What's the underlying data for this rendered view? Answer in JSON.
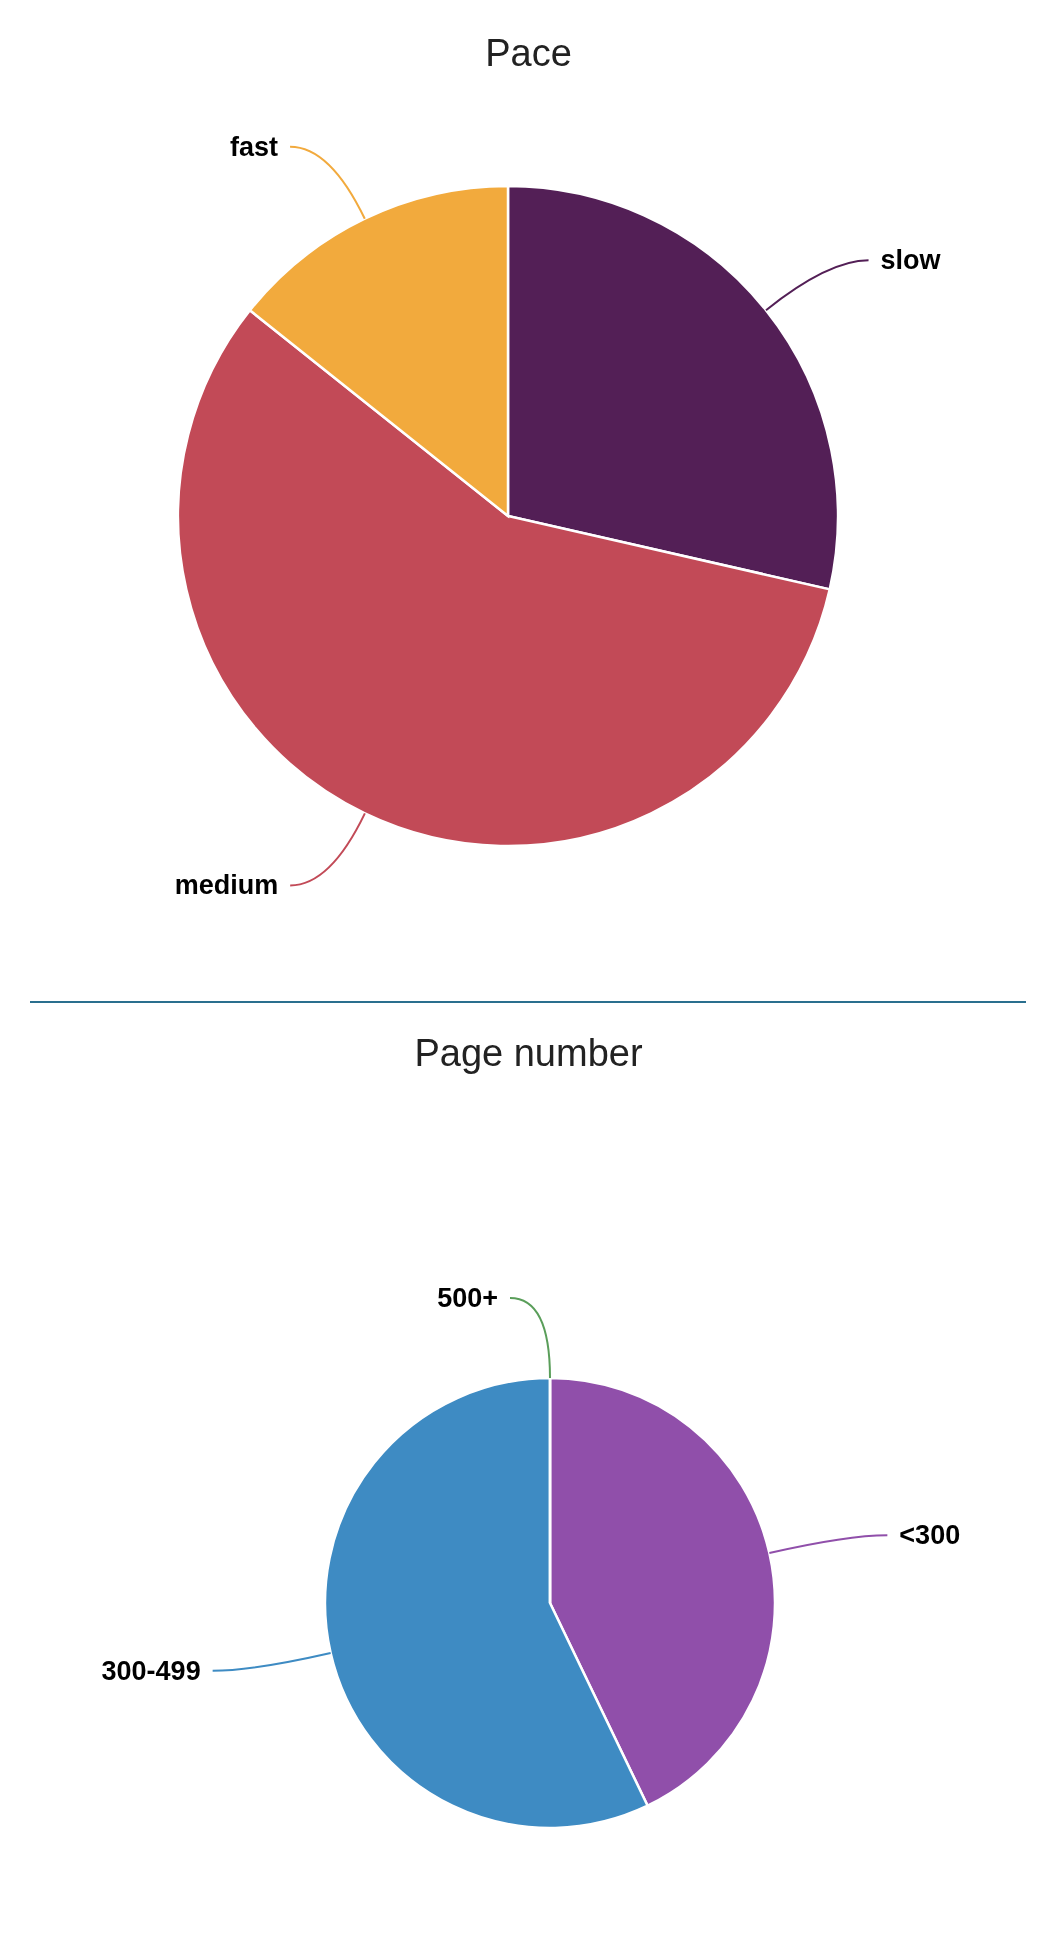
{
  "chart_data": [
    {
      "type": "pie",
      "title": "Pace",
      "categories": [
        "slow",
        "medium",
        "fast"
      ],
      "values": [
        28.57,
        57.14,
        14.29
      ],
      "colors": [
        "#531f56",
        "#c24a57",
        "#f2aa3d"
      ]
    },
    {
      "type": "pie",
      "title": "Page number",
      "categories": [
        "<300",
        "300-499",
        "500+"
      ],
      "values": [
        42.86,
        57.14,
        0
      ],
      "colors": [
        "#904faa",
        "#3e8bc3",
        "#5a9e5a"
      ]
    }
  ]
}
